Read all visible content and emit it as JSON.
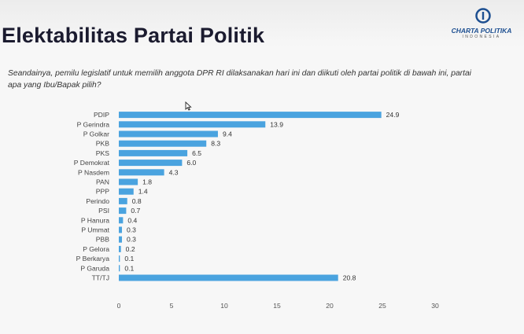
{
  "title": "Elektabilitas Partai Politik",
  "logo": {
    "name": "CHARTA POLITIKA",
    "sub": "INDONESIA",
    "icon": "charta-politika-logo-icon",
    "color": "#1d4f91"
  },
  "question": "Seandainya, pemilu legislatif untuk memilih anggota DPR RI dilaksanakan hari ini dan diikuti oleh partai politik di bawah ini, partai apa yang Ibu/Bapak pilih?",
  "cursor_icon": "mouse-pointer-icon",
  "chart_data": {
    "type": "bar",
    "orientation": "horizontal",
    "title": "",
    "xlabel": "",
    "ylabel": "",
    "xlim": [
      0,
      30
    ],
    "ticks": [
      0,
      5,
      10,
      15,
      20,
      25,
      30
    ],
    "grid": false,
    "legend": "none",
    "bar_color": "#4aa3df",
    "categories": [
      "PDIP",
      "P Gerindra",
      "P Golkar",
      "PKB",
      "PKS",
      "P Demokrat",
      "P Nasdem",
      "PAN",
      "PPP",
      "Perindo",
      "PSI",
      "P Hanura",
      "P Ummat",
      "PBB",
      "P Gelora",
      "P Berkarya",
      "P Garuda",
      "TT/TJ"
    ],
    "values": [
      24.9,
      13.9,
      9.4,
      8.3,
      6.5,
      6.0,
      4.3,
      1.8,
      1.4,
      0.8,
      0.7,
      0.4,
      0.3,
      0.3,
      0.2,
      0.1,
      0.1,
      20.8
    ],
    "value_labels": [
      "24.9",
      "13.9",
      "9.4",
      "8.3",
      "6.5",
      "6.0",
      "4.3",
      "1.8",
      "1.4",
      "0.8",
      "0.7",
      "0.4",
      "0.3",
      "0.3",
      "0.2",
      "0.1",
      "0.1",
      "20.8"
    ]
  }
}
